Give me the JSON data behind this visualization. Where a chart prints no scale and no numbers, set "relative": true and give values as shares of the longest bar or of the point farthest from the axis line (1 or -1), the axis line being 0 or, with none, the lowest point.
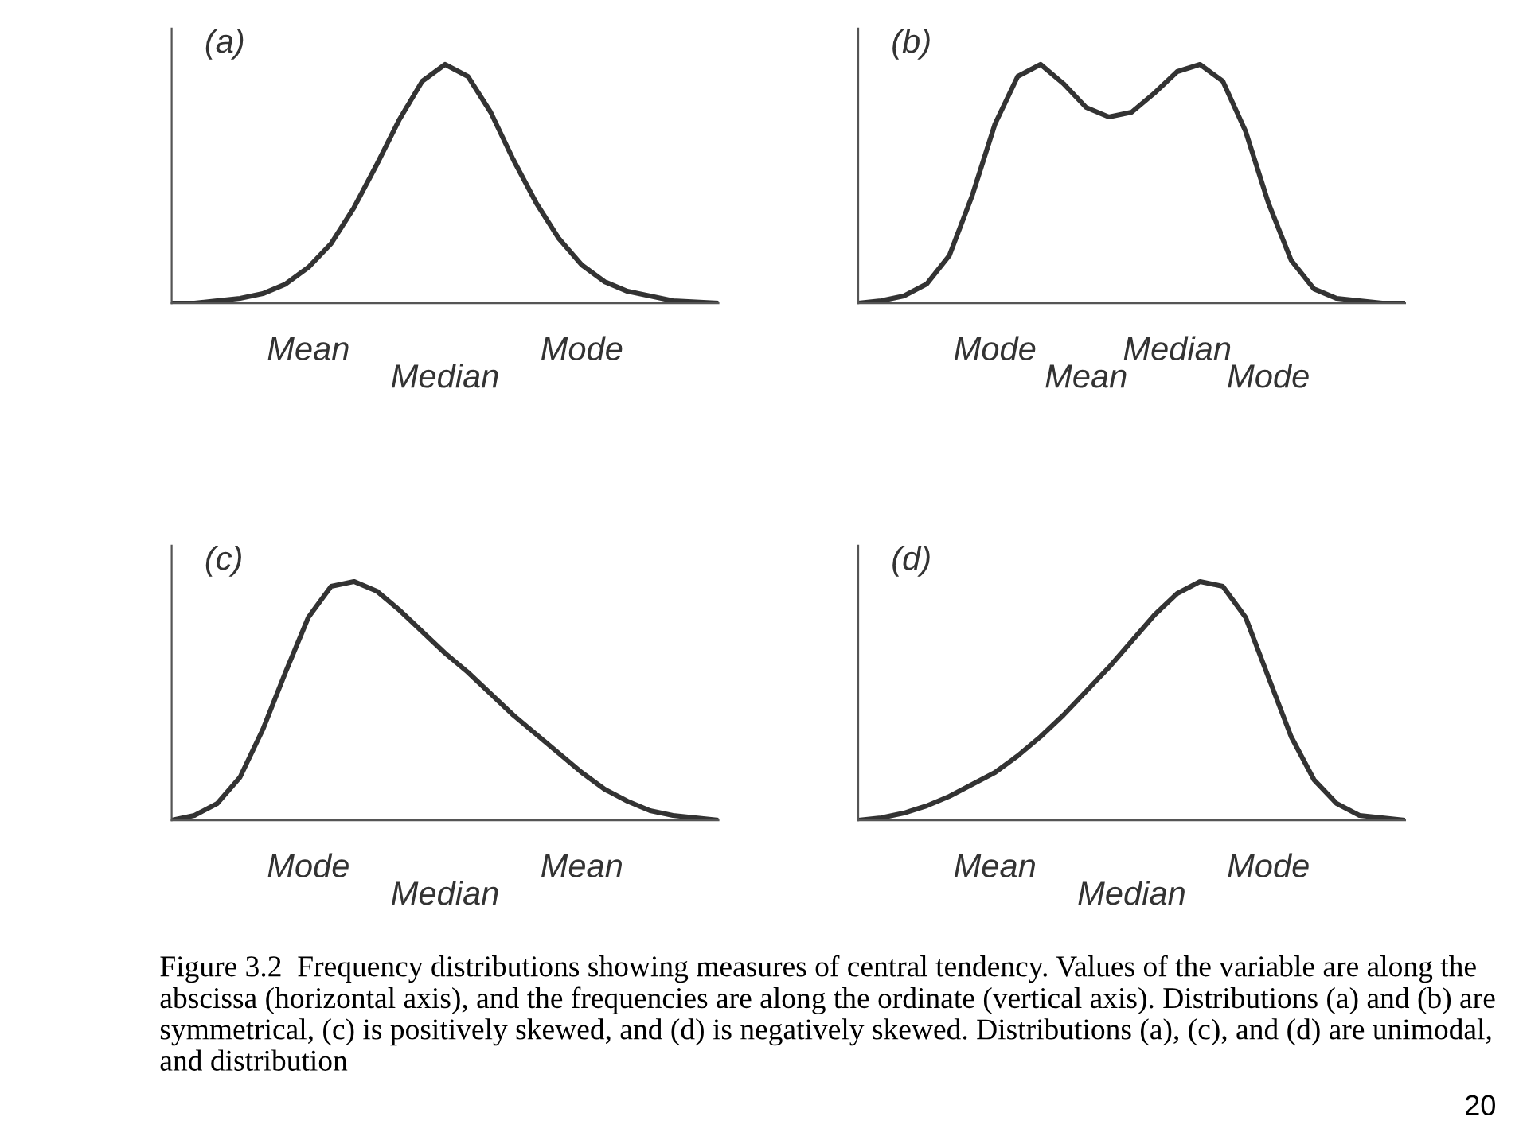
{
  "chart_data": [
    {
      "type": "line",
      "title": "(a)",
      "relative": true,
      "tick_labels": false,
      "color": "#333333",
      "categories": [
        null,
        null,
        null,
        null,
        null,
        null,
        null,
        null,
        null,
        null,
        null,
        null,
        null,
        null,
        null,
        null,
        null,
        null,
        null,
        null,
        null,
        null,
        null,
        null,
        null
      ],
      "values": [
        0,
        0,
        0.01,
        0.02,
        0.04,
        0.08,
        0.15,
        0.25,
        0.4,
        0.58,
        0.77,
        0.93,
        1.0,
        0.95,
        0.8,
        0.6,
        0.42,
        0.27,
        0.16,
        0.09,
        0.05,
        0.03,
        0.01,
        0.005,
        0
      ],
      "annotations": [
        "Mean",
        "Median",
        "Mode"
      ]
    },
    {
      "type": "line",
      "title": "(b)",
      "relative": true,
      "tick_labels": false,
      "color": "#333333",
      "categories": [
        null,
        null,
        null,
        null,
        null,
        null,
        null,
        null,
        null,
        null,
        null,
        null,
        null,
        null,
        null,
        null,
        null,
        null,
        null,
        null,
        null,
        null,
        null,
        null,
        null
      ],
      "values": [
        0,
        0.01,
        0.03,
        0.08,
        0.2,
        0.45,
        0.75,
        0.95,
        1.0,
        0.92,
        0.82,
        0.78,
        0.8,
        0.88,
        0.97,
        1.0,
        0.93,
        0.72,
        0.42,
        0.18,
        0.06,
        0.02,
        0.01,
        0,
        0
      ],
      "annotations": [
        "Mode",
        "Mean",
        "Median",
        "Mode"
      ]
    },
    {
      "type": "line",
      "title": "(c)",
      "relative": true,
      "tick_labels": false,
      "color": "#333333",
      "categories": [
        null,
        null,
        null,
        null,
        null,
        null,
        null,
        null,
        null,
        null,
        null,
        null,
        null,
        null,
        null,
        null,
        null,
        null,
        null,
        null,
        null,
        null,
        null,
        null,
        null
      ],
      "values": [
        0,
        0.02,
        0.07,
        0.18,
        0.38,
        0.62,
        0.85,
        0.98,
        1.0,
        0.96,
        0.88,
        0.79,
        0.7,
        0.62,
        0.53,
        0.44,
        0.36,
        0.28,
        0.2,
        0.13,
        0.08,
        0.04,
        0.02,
        0.01,
        0
      ],
      "annotations": [
        "Mode",
        "Median",
        "Mean"
      ]
    },
    {
      "type": "line",
      "title": "(d)",
      "relative": true,
      "tick_labels": false,
      "color": "#333333",
      "categories": [
        null,
        null,
        null,
        null,
        null,
        null,
        null,
        null,
        null,
        null,
        null,
        null,
        null,
        null,
        null,
        null,
        null,
        null,
        null,
        null,
        null,
        null,
        null,
        null,
        null
      ],
      "values": [
        0,
        0.01,
        0.03,
        0.06,
        0.1,
        0.15,
        0.2,
        0.27,
        0.35,
        0.44,
        0.54,
        0.64,
        0.75,
        0.86,
        0.95,
        1.0,
        0.98,
        0.85,
        0.6,
        0.35,
        0.17,
        0.07,
        0.02,
        0.01,
        0
      ],
      "annotations": [
        "Mean",
        "Median",
        "Mode"
      ]
    },
    {
      "type": "other",
      "annotations": [
        "Figure 3.2  Frequency distributions showing measures of central tendency. Values of the variable are along the abscissa (horizontal axis), and the frequencies are along the ordinate (vertical axis). Distributions (a) and (b) are symmetrical, (c) is positively skewed, and (d) is negatively skewed. Distributions (a), (c), and (d) are unimodal, and distribution",
        "20"
      ]
    }
  ]
}
